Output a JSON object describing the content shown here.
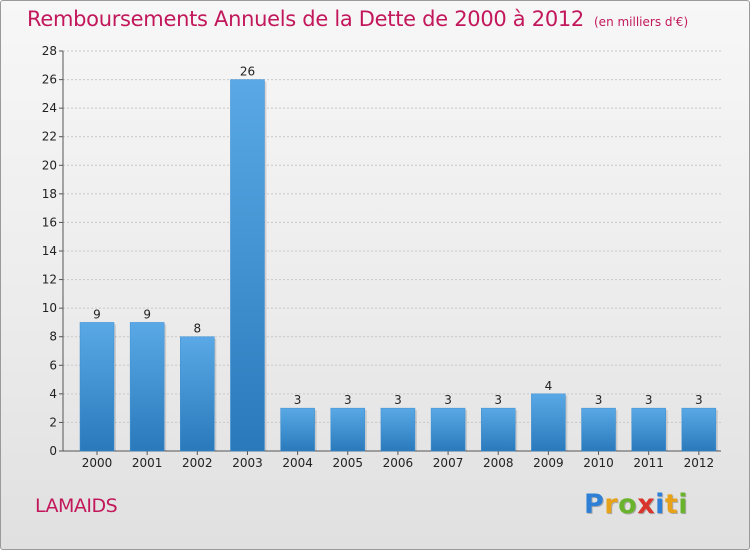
{
  "header": {
    "title": "Remboursements Annuels de la Dette de 2000 à 2012",
    "subtitle": "(en milliers d'€)"
  },
  "footer": {
    "commune": "LAMAIDS",
    "logo_letters": [
      {
        "char": "P",
        "color": "#2e7fd6"
      },
      {
        "char": "r",
        "color": "#e8a21a"
      },
      {
        "char": "o",
        "color": "#6ab42d"
      },
      {
        "char": "x",
        "color": "#d9342b"
      },
      {
        "char": "i",
        "color": "#2e7fd6"
      },
      {
        "char": "t",
        "color": "#e8a21a"
      },
      {
        "char": "i",
        "color": "#6ab42d"
      }
    ]
  },
  "colors": {
    "title": "#c2185b",
    "bar_light": "#5aa9e6",
    "bar_dark": "#2a79bb",
    "grid": "#c8c8c8"
  },
  "chart_data": {
    "type": "bar",
    "categories": [
      "2000",
      "2001",
      "2002",
      "2003",
      "2004",
      "2005",
      "2006",
      "2007",
      "2008",
      "2009",
      "2010",
      "2011",
      "2012"
    ],
    "values": [
      9,
      9,
      8,
      26,
      3,
      3,
      3,
      3,
      3,
      4,
      3,
      3,
      3
    ],
    "ylim": [
      0,
      28
    ],
    "yticks": [
      0,
      2,
      4,
      6,
      8,
      10,
      12,
      14,
      16,
      18,
      20,
      22,
      24,
      26,
      28
    ],
    "grid": true,
    "data_labels": true
  }
}
